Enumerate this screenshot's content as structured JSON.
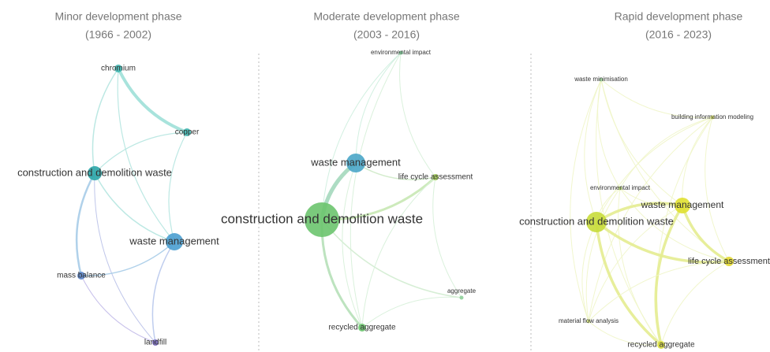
{
  "panels": [
    {
      "title": "Minor development phase",
      "period": "(1966 - 2002)",
      "nodes": [
        {
          "label": "chromium"
        },
        {
          "label": "copper"
        },
        {
          "label": "construction and demolition waste"
        },
        {
          "label": "waste management"
        },
        {
          "label": "mass balance"
        },
        {
          "label": "landfill"
        }
      ]
    },
    {
      "title": "Moderate development phase",
      "period": "(2003 - 2016)",
      "nodes": [
        {
          "label": "environmental impact"
        },
        {
          "label": "waste management"
        },
        {
          "label": "life cycle assessment"
        },
        {
          "label": "construction and demolition waste"
        },
        {
          "label": "aggregate"
        },
        {
          "label": "recycled aggregate"
        }
      ]
    },
    {
      "title": "Rapid development phase",
      "period": "(2016 - 2023)",
      "nodes": [
        {
          "label": "waste minimisation"
        },
        {
          "label": "building information modeling"
        },
        {
          "label": "environmental impact"
        },
        {
          "label": "waste management"
        },
        {
          "label": "construction and demolition waste"
        },
        {
          "label": "life cycle assessment"
        },
        {
          "label": "material flow analysis"
        },
        {
          "label": "recycled aggregate"
        }
      ]
    }
  ]
}
